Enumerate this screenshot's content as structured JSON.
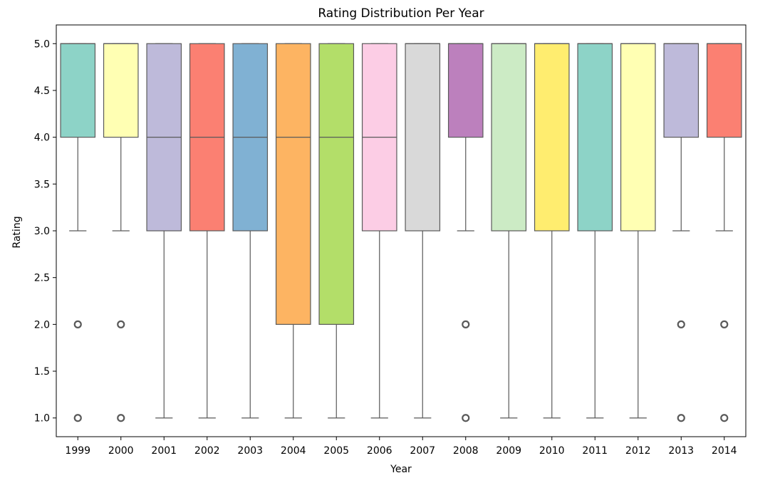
{
  "chart_data": {
    "type": "box",
    "title": "Rating Distribution Per Year",
    "xlabel": "Year",
    "ylabel": "Rating",
    "ylim": [
      0.8,
      5.2
    ],
    "yticks": [
      1.0,
      1.5,
      2.0,
      2.5,
      3.0,
      3.5,
      4.0,
      4.5,
      5.0
    ],
    "ytick_labels": [
      "1.0",
      "1.5",
      "2.0",
      "2.5",
      "3.0",
      "3.5",
      "4.0",
      "4.5",
      "5.0"
    ],
    "grid": false,
    "legend": "none",
    "categories": [
      "1999",
      "2000",
      "2001",
      "2002",
      "2003",
      "2004",
      "2005",
      "2006",
      "2007",
      "2008",
      "2009",
      "2010",
      "2011",
      "2012",
      "2013",
      "2014"
    ],
    "boxes": [
      {
        "whisker_low": 3,
        "q1": 4,
        "median": 5,
        "q3": 5,
        "whisker_high": 5,
        "outliers": [
          2,
          1
        ],
        "color": "#8dd3c7"
      },
      {
        "whisker_low": 3,
        "q1": 4,
        "median": 5,
        "q3": 5,
        "whisker_high": 5,
        "outliers": [
          2,
          1
        ],
        "color": "#ffffb3"
      },
      {
        "whisker_low": 1,
        "q1": 3,
        "median": 4,
        "q3": 5,
        "whisker_high": 5,
        "outliers": [],
        "color": "#bebada"
      },
      {
        "whisker_low": 1,
        "q1": 3,
        "median": 4,
        "q3": 5,
        "whisker_high": 5,
        "outliers": [],
        "color": "#fb8072"
      },
      {
        "whisker_low": 1,
        "q1": 3,
        "median": 4,
        "q3": 5,
        "whisker_high": 5,
        "outliers": [],
        "color": "#80b1d3"
      },
      {
        "whisker_low": 1,
        "q1": 2,
        "median": 4,
        "q3": 5,
        "whisker_high": 5,
        "outliers": [],
        "color": "#fdb462"
      },
      {
        "whisker_low": 1,
        "q1": 2,
        "median": 4,
        "q3": 5,
        "whisker_high": 5,
        "outliers": [],
        "color": "#b3de69"
      },
      {
        "whisker_low": 1,
        "q1": 3,
        "median": 4,
        "q3": 5,
        "whisker_high": 5,
        "outliers": [],
        "color": "#fccde5"
      },
      {
        "whisker_low": 1,
        "q1": 3,
        "median": 5,
        "q3": 5,
        "whisker_high": 5,
        "outliers": [],
        "color": "#d9d9d9"
      },
      {
        "whisker_low": 3,
        "q1": 4,
        "median": 5,
        "q3": 5,
        "whisker_high": 5,
        "outliers": [
          2,
          1
        ],
        "color": "#bc80bd"
      },
      {
        "whisker_low": 1,
        "q1": 3,
        "median": 5,
        "q3": 5,
        "whisker_high": 5,
        "outliers": [],
        "color": "#ccebc5"
      },
      {
        "whisker_low": 1,
        "q1": 3,
        "median": 5,
        "q3": 5,
        "whisker_high": 5,
        "outliers": [],
        "color": "#ffed6f"
      },
      {
        "whisker_low": 1,
        "q1": 3,
        "median": 5,
        "q3": 5,
        "whisker_high": 5,
        "outliers": [],
        "color": "#8dd3c7"
      },
      {
        "whisker_low": 1,
        "q1": 3,
        "median": 5,
        "q3": 5,
        "whisker_high": 5,
        "outliers": [],
        "color": "#ffffb3"
      },
      {
        "whisker_low": 3,
        "q1": 4,
        "median": 5,
        "q3": 5,
        "whisker_high": 5,
        "outliers": [
          2,
          1
        ],
        "color": "#bebada"
      },
      {
        "whisker_low": 3,
        "q1": 4,
        "median": 5,
        "q3": 5,
        "whisker_high": 5,
        "outliers": [
          2,
          1
        ],
        "color": "#fb8072"
      }
    ],
    "line_color": "#5a5a5a"
  }
}
